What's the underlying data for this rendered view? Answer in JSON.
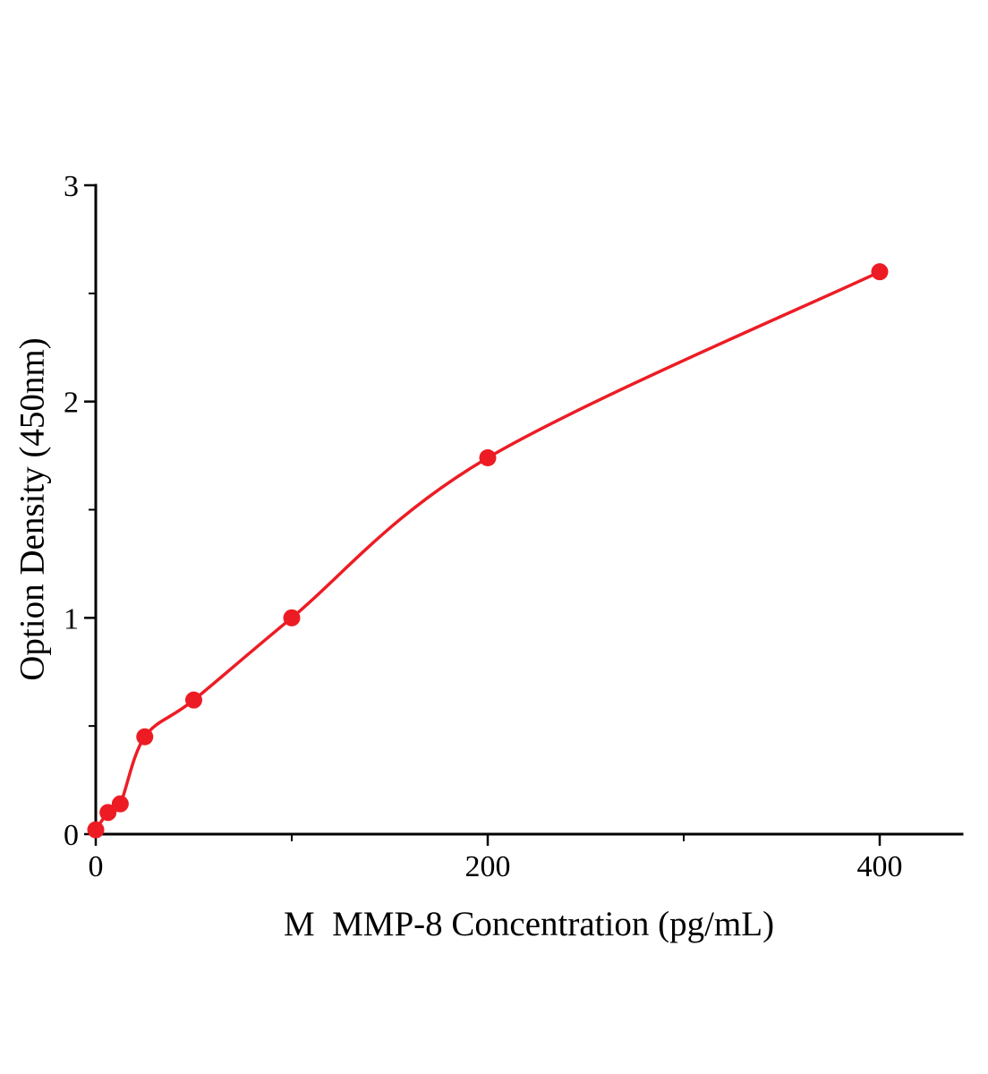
{
  "chart_data": {
    "type": "scatter",
    "title": "",
    "xlabel": "M  MMP-8 Concentration (pg/mL)",
    "ylabel": "Option Density (450nm)",
    "x": [
      0,
      6.25,
      12.5,
      25,
      50,
      100,
      200,
      400
    ],
    "y": [
      0.02,
      0.1,
      0.14,
      0.45,
      0.62,
      1.0,
      1.74,
      2.6
    ],
    "fit_curve": "smooth saturating fit through all points",
    "x_ticks": [
      0,
      200,
      400
    ],
    "x_tick_labels": [
      "0",
      "200",
      "400"
    ],
    "x_minor_ticks": [
      100,
      300
    ],
    "y_ticks": [
      0,
      1,
      2,
      3
    ],
    "y_tick_labels": [
      "0",
      "1",
      "2",
      "3"
    ],
    "y_minor_ticks": [
      0.5,
      1.5,
      2.5
    ],
    "xlim": [
      0,
      442
    ],
    "ylim": [
      0,
      3
    ],
    "grid": false,
    "legend": null,
    "point_color": "#ed1c24",
    "line_color": "#ed1c24",
    "axis_color": "#000000",
    "tick_label_color": "#000000"
  }
}
